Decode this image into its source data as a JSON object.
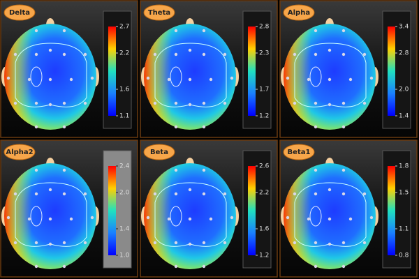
{
  "panels": [
    {
      "label": "Delta",
      "ticks": [
        "2.7",
        "2.2",
        "1.6",
        "1.1"
      ]
    },
    {
      "label": "Theta",
      "ticks": [
        "2.8",
        "2.3",
        "1.7",
        "1.2"
      ]
    },
    {
      "label": "Alpha",
      "ticks": [
        "3.4",
        "2.8",
        "2.0",
        "1.4"
      ]
    },
    {
      "label": "Alpha2",
      "ticks": [
        "2.4",
        "2.0",
        "1.4",
        "1.0"
      ]
    },
    {
      "label": "Beta",
      "ticks": [
        "2.6",
        "2.2",
        "1.6",
        "1.2"
      ]
    },
    {
      "label": "Beta1",
      "ticks": [
        "1.8",
        "1.5",
        "1.1",
        "0.8"
      ]
    }
  ]
}
